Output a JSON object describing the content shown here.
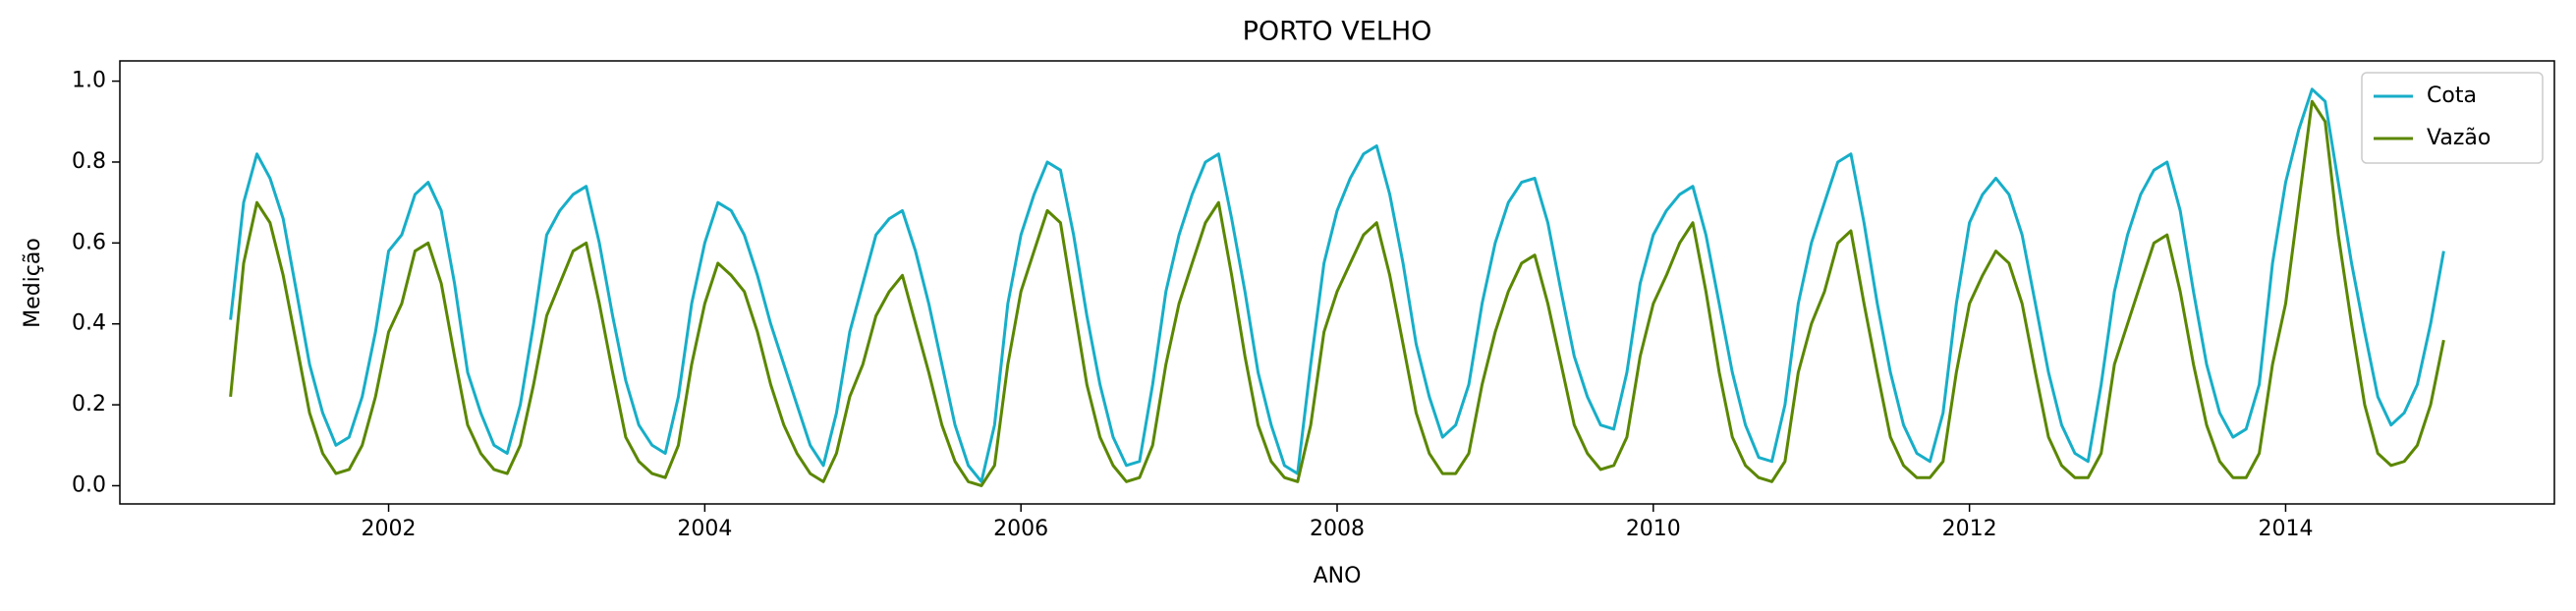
{
  "chart_data": {
    "type": "line",
    "title": "PORTO VELHO",
    "xlabel": "ANO",
    "ylabel": "Medição",
    "x": [
      2001,
      2001.083,
      2001.167,
      2001.25,
      2001.333,
      2001.417,
      2001.5,
      2001.583,
      2001.667,
      2001.75,
      2001.833,
      2001.917,
      2002,
      2002.083,
      2002.167,
      2002.25,
      2002.333,
      2002.417,
      2002.5,
      2002.583,
      2002.667,
      2002.75,
      2002.833,
      2002.917,
      2003,
      2003.083,
      2003.167,
      2003.25,
      2003.333,
      2003.417,
      2003.5,
      2003.583,
      2003.667,
      2003.75,
      2003.833,
      2003.917,
      2004,
      2004.083,
      2004.167,
      2004.25,
      2004.333,
      2004.417,
      2004.5,
      2004.583,
      2004.667,
      2004.75,
      2004.833,
      2004.917,
      2005,
      2005.083,
      2005.167,
      2005.25,
      2005.333,
      2005.417,
      2005.5,
      2005.583,
      2005.667,
      2005.75,
      2005.833,
      2005.917,
      2006,
      2006.083,
      2006.167,
      2006.25,
      2006.333,
      2006.417,
      2006.5,
      2006.583,
      2006.667,
      2006.75,
      2006.833,
      2006.917,
      2007,
      2007.083,
      2007.167,
      2007.25,
      2007.333,
      2007.417,
      2007.5,
      2007.583,
      2007.667,
      2007.75,
      2007.833,
      2007.917,
      2008,
      2008.083,
      2008.167,
      2008.25,
      2008.333,
      2008.417,
      2008.5,
      2008.583,
      2008.667,
      2008.75,
      2008.833,
      2008.917,
      2009,
      2009.083,
      2009.167,
      2009.25,
      2009.333,
      2009.417,
      2009.5,
      2009.583,
      2009.667,
      2009.75,
      2009.833,
      2009.917,
      2010,
      2010.083,
      2010.167,
      2010.25,
      2010.333,
      2010.417,
      2010.5,
      2010.583,
      2010.667,
      2010.75,
      2010.833,
      2010.917,
      2011,
      2011.083,
      2011.167,
      2011.25,
      2011.333,
      2011.417,
      2011.5,
      2011.583,
      2011.667,
      2011.75,
      2011.833,
      2011.917,
      2012,
      2012.083,
      2012.167,
      2012.25,
      2012.333,
      2012.417,
      2012.5,
      2012.583,
      2012.667,
      2012.75,
      2012.833,
      2012.917,
      2013,
      2013.083,
      2013.167,
      2013.25,
      2013.333,
      2013.417,
      2013.5,
      2013.583,
      2013.667,
      2013.75,
      2013.833,
      2013.917,
      2014,
      2014.083,
      2014.167,
      2014.25,
      2014.333,
      2014.417,
      2014.5,
      2014.583,
      2014.667,
      2014.75,
      2014.833,
      2014.917,
      2015
    ],
    "series": [
      {
        "name": "Cota",
        "color": "#17aec8",
        "values": [
          0.41,
          0.7,
          0.82,
          0.76,
          0.66,
          0.48,
          0.3,
          0.18,
          0.1,
          0.12,
          0.22,
          0.38,
          0.58,
          0.62,
          0.72,
          0.75,
          0.68,
          0.5,
          0.28,
          0.18,
          0.1,
          0.08,
          0.2,
          0.4,
          0.62,
          0.68,
          0.72,
          0.74,
          0.6,
          0.42,
          0.26,
          0.15,
          0.1,
          0.08,
          0.22,
          0.45,
          0.6,
          0.7,
          0.68,
          0.62,
          0.52,
          0.4,
          0.3,
          0.2,
          0.1,
          0.05,
          0.18,
          0.38,
          0.5,
          0.62,
          0.66,
          0.68,
          0.58,
          0.45,
          0.3,
          0.15,
          0.05,
          0.01,
          0.15,
          0.45,
          0.62,
          0.72,
          0.8,
          0.78,
          0.62,
          0.42,
          0.25,
          0.12,
          0.05,
          0.06,
          0.25,
          0.48,
          0.62,
          0.72,
          0.8,
          0.82,
          0.66,
          0.48,
          0.28,
          0.15,
          0.05,
          0.03,
          0.3,
          0.55,
          0.68,
          0.76,
          0.82,
          0.84,
          0.72,
          0.55,
          0.35,
          0.22,
          0.12,
          0.15,
          0.25,
          0.45,
          0.6,
          0.7,
          0.75,
          0.76,
          0.65,
          0.48,
          0.32,
          0.22,
          0.15,
          0.14,
          0.28,
          0.5,
          0.62,
          0.68,
          0.72,
          0.74,
          0.62,
          0.45,
          0.28,
          0.15,
          0.07,
          0.06,
          0.2,
          0.45,
          0.6,
          0.7,
          0.8,
          0.82,
          0.65,
          0.45,
          0.28,
          0.15,
          0.08,
          0.06,
          0.18,
          0.45,
          0.65,
          0.72,
          0.76,
          0.72,
          0.62,
          0.45,
          0.28,
          0.15,
          0.08,
          0.06,
          0.25,
          0.48,
          0.62,
          0.72,
          0.78,
          0.8,
          0.68,
          0.48,
          0.3,
          0.18,
          0.12,
          0.14,
          0.25,
          0.55,
          0.75,
          0.88,
          0.98,
          0.95,
          0.75,
          0.55,
          0.38,
          0.22,
          0.15,
          0.18,
          0.25,
          0.4,
          0.58
        ]
      },
      {
        "name": "Vazão",
        "color": "#5b8700",
        "values": [
          0.22,
          0.55,
          0.7,
          0.65,
          0.52,
          0.35,
          0.18,
          0.08,
          0.03,
          0.04,
          0.1,
          0.22,
          0.38,
          0.45,
          0.58,
          0.6,
          0.5,
          0.32,
          0.15,
          0.08,
          0.04,
          0.03,
          0.1,
          0.25,
          0.42,
          0.5,
          0.58,
          0.6,
          0.45,
          0.28,
          0.12,
          0.06,
          0.03,
          0.02,
          0.1,
          0.3,
          0.45,
          0.55,
          0.52,
          0.48,
          0.38,
          0.25,
          0.15,
          0.08,
          0.03,
          0.01,
          0.08,
          0.22,
          0.3,
          0.42,
          0.48,
          0.52,
          0.4,
          0.28,
          0.15,
          0.06,
          0.01,
          0.0,
          0.05,
          0.3,
          0.48,
          0.58,
          0.68,
          0.65,
          0.45,
          0.25,
          0.12,
          0.05,
          0.01,
          0.02,
          0.1,
          0.3,
          0.45,
          0.55,
          0.65,
          0.7,
          0.52,
          0.32,
          0.15,
          0.06,
          0.02,
          0.01,
          0.15,
          0.38,
          0.48,
          0.55,
          0.62,
          0.65,
          0.52,
          0.35,
          0.18,
          0.08,
          0.03,
          0.03,
          0.08,
          0.25,
          0.38,
          0.48,
          0.55,
          0.57,
          0.45,
          0.3,
          0.15,
          0.08,
          0.04,
          0.05,
          0.12,
          0.32,
          0.45,
          0.52,
          0.6,
          0.65,
          0.48,
          0.28,
          0.12,
          0.05,
          0.02,
          0.01,
          0.06,
          0.28,
          0.4,
          0.48,
          0.6,
          0.63,
          0.45,
          0.28,
          0.12,
          0.05,
          0.02,
          0.02,
          0.06,
          0.28,
          0.45,
          0.52,
          0.58,
          0.55,
          0.45,
          0.28,
          0.12,
          0.05,
          0.02,
          0.02,
          0.08,
          0.3,
          0.4,
          0.5,
          0.6,
          0.62,
          0.48,
          0.3,
          0.15,
          0.06,
          0.02,
          0.02,
          0.08,
          0.3,
          0.45,
          0.7,
          0.95,
          0.9,
          0.62,
          0.4,
          0.2,
          0.08,
          0.05,
          0.06,
          0.1,
          0.2,
          0.36
        ]
      }
    ],
    "xlim": [
      2000.3,
      2015.7
    ],
    "ylim": [
      -0.045,
      1.05
    ],
    "xticks": [
      2002,
      2004,
      2006,
      2008,
      2010,
      2012,
      2014
    ],
    "yticks": [
      {
        "value": 0,
        "label": "0.0"
      },
      0.2,
      0.4,
      0.6,
      0.8,
      {
        "value": 1,
        "label": "1.0"
      }
    ],
    "grid": false,
    "legend": "upper right"
  }
}
